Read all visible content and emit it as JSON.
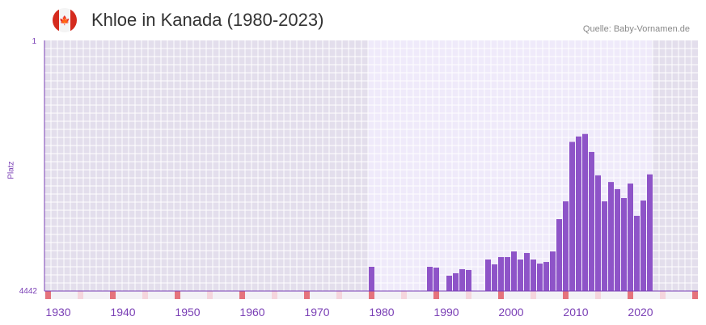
{
  "header": {
    "title": "Khloe in Kanada (1980-2023)",
    "source": "Quelle: Baby-Vornamen.de",
    "flag_icon": "canada-flag-icon"
  },
  "chart_data": {
    "type": "bar",
    "title": "Khloe in Kanada (1980-2023)",
    "xlabel": "",
    "ylabel": "Platz",
    "y_scale": "log-reversed",
    "ylim": [
      4442,
      1
    ],
    "y_ticks": [
      "1",
      "4442"
    ],
    "xlim": [
      1930,
      2031
    ],
    "x_ticks": [
      "1930",
      "1940",
      "1950",
      "1960",
      "1970",
      "1980",
      "1990",
      "2000",
      "2010",
      "2020"
    ],
    "highlight_range": [
      1980,
      2023
    ],
    "bar_color": "#8e54c8",
    "points": [
      {
        "year": 1980,
        "rank": 1970
      },
      {
        "year": 1989,
        "rank": 1970
      },
      {
        "year": 1990,
        "rank": 2024
      },
      {
        "year": 1992,
        "rank": 2653
      },
      {
        "year": 1993,
        "rank": 2446
      },
      {
        "year": 1994,
        "rank": 2137
      },
      {
        "year": 1995,
        "rank": 2195
      },
      {
        "year": 1998,
        "rank": 1543
      },
      {
        "year": 1999,
        "rank": 1817
      },
      {
        "year": 2000,
        "rank": 1423
      },
      {
        "year": 2001,
        "rank": 1423
      },
      {
        "year": 2002,
        "rank": 1178
      },
      {
        "year": 2003,
        "rank": 1543
      },
      {
        "year": 2004,
        "rank": 1243
      },
      {
        "year": 2005,
        "rank": 1543
      },
      {
        "year": 2006,
        "rank": 1770
      },
      {
        "year": 2007,
        "rank": 1677
      },
      {
        "year": 2008,
        "rank": 1178
      },
      {
        "year": 2009,
        "rank": 399
      },
      {
        "year": 2010,
        "rank": 220
      },
      {
        "year": 2011,
        "rank": 30
      },
      {
        "year": 2012,
        "rank": 25
      },
      {
        "year": 2013,
        "rank": 23
      },
      {
        "year": 2014,
        "rank": 42
      },
      {
        "year": 2015,
        "rank": 92
      },
      {
        "year": 2016,
        "rank": 220
      },
      {
        "year": 2017,
        "rank": 115
      },
      {
        "year": 2018,
        "rank": 146
      },
      {
        "year": 2019,
        "rank": 197
      },
      {
        "year": 2020,
        "rank": 121
      },
      {
        "year": 2021,
        "rank": 357
      },
      {
        "year": 2022,
        "rank": 214
      },
      {
        "year": 2023,
        "rank": 89
      }
    ]
  }
}
